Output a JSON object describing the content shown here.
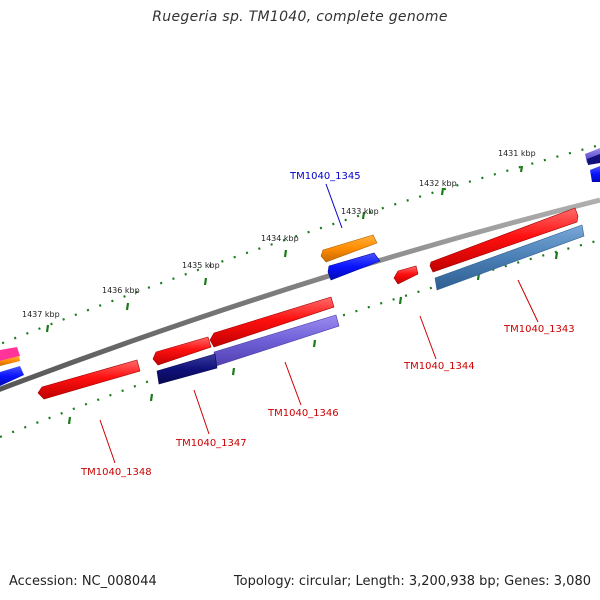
{
  "title": "Ruegeria sp. TM1040, complete genome",
  "footer": {
    "accession": "Accession: NC_008044",
    "topology": "Topology: circular; Length: 3,200,938 bp; Genes: 3,080"
  },
  "ticks": [
    "1431 kbp",
    "1432 kbp",
    "1433 kbp",
    "1434 kbp",
    "1435 kbp",
    "1436 kbp",
    "1437 kbp"
  ],
  "genes": [
    {
      "id": "TM1040_1343",
      "label": "TM1040_1343",
      "color": "#cc0000"
    },
    {
      "id": "TM1040_1344",
      "label": "TM1040_1344",
      "color": "#cc0000"
    },
    {
      "id": "TM1040_1345",
      "label": "TM1040_1345",
      "color": "#0000cc"
    },
    {
      "id": "TM1040_1346",
      "label": "TM1040_1346",
      "color": "#cc0000"
    },
    {
      "id": "TM1040_1347",
      "label": "TM1040_1347",
      "color": "#cc0000"
    },
    {
      "id": "TM1040_1348",
      "label": "TM1040_1348",
      "color": "#cc0000"
    }
  ],
  "colors": {
    "backbone": "#808080",
    "tick": "#1a7a1a",
    "red": "#ff1a1a",
    "blue": "#0a14ff",
    "navy": "#10107a",
    "violet": "#7060d8",
    "steel": "#4a7fb5",
    "orange": "#ff8c00",
    "magenta": "#ff3399"
  }
}
